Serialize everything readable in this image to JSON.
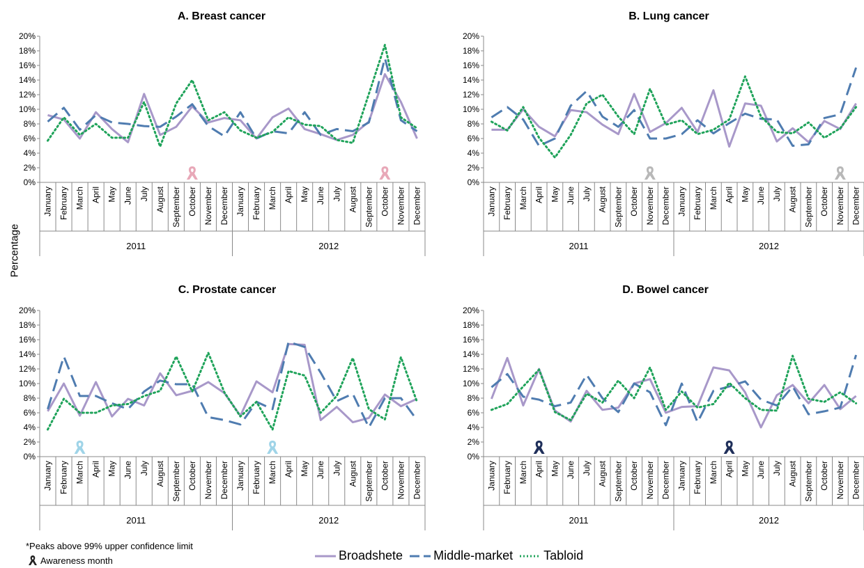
{
  "ylabel": "Percentage",
  "footnote_peaks": "*Peaks above 99% upper confidence limit",
  "footnote_awareness": "Awareness month",
  "legend": [
    {
      "name": "Broadshete",
      "color": "#a898c9",
      "dash": "solid"
    },
    {
      "name": "Middle-market",
      "color": "#4f7cb0",
      "dash": "longdash"
    },
    {
      "name": "Tabloid",
      "color": "#1fa35a",
      "dash": "dot"
    }
  ],
  "colors": {
    "broadsheet": "#a898c9",
    "middle_market": "#4f7cb0",
    "tabloid": "#1fa35a",
    "axis": "#888888"
  },
  "chart_data": [
    {
      "type": "line",
      "title": "A. Breast cancer",
      "ylabel": "Percentage",
      "ylim": [
        0,
        20
      ],
      "yticks": [
        "0%",
        "2%",
        "4%",
        "6%",
        "8%",
        "10%",
        "12%",
        "14%",
        "16%",
        "18%",
        "20%"
      ],
      "years": [
        "2011",
        "2012"
      ],
      "categories": [
        "January",
        "February",
        "March",
        "April",
        "May",
        "June",
        "July",
        "August",
        "September",
        "October",
        "November",
        "December",
        "January",
        "February",
        "March",
        "April",
        "May",
        "June",
        "July",
        "August",
        "September",
        "October",
        "November",
        "December"
      ],
      "awareness_months": [
        9,
        21
      ],
      "awareness_color": "#e8a8b8",
      "series": [
        {
          "name": "Broadsheet",
          "values": [
            9.2,
            8.6,
            6.0,
            9.6,
            7.3,
            5.5,
            12.1,
            6.5,
            7.6,
            10.4,
            8.2,
            8.8,
            8.5,
            6.0,
            8.9,
            10.1,
            7.3,
            6.6,
            5.8,
            6.5,
            8.3,
            14.8,
            11.0,
            6.0
          ]
        },
        {
          "name": "Middle-market",
          "values": [
            8.3,
            10.2,
            7.2,
            9.2,
            8.2,
            8.0,
            7.7,
            7.6,
            9.0,
            10.7,
            7.7,
            6.3,
            9.6,
            6.0,
            7.0,
            6.7,
            9.6,
            6.5,
            7.3,
            7.0,
            8.2,
            17.0,
            8.5,
            7.0
          ]
        },
        {
          "name": "Tabloid",
          "values": [
            5.7,
            8.9,
            6.5,
            8.0,
            6.1,
            6.1,
            11.0,
            4.9,
            10.8,
            14.0,
            8.5,
            9.6,
            7.1,
            6.1,
            6.9,
            8.9,
            7.9,
            7.7,
            5.8,
            5.4,
            12.1,
            18.8,
            8.9,
            7.4
          ]
        }
      ]
    },
    {
      "type": "line",
      "title": "B. Lung cancer",
      "ylabel": "Percentage",
      "ylim": [
        0,
        20
      ],
      "yticks": [
        "0%",
        "2%",
        "4%",
        "6%",
        "8%",
        "10%",
        "12%",
        "14%",
        "16%",
        "18%",
        "20%"
      ],
      "years": [
        "2011",
        "2012"
      ],
      "categories": [
        "January",
        "February",
        "March",
        "April",
        "May",
        "June",
        "July",
        "August",
        "September",
        "October",
        "November",
        "December",
        "January",
        "February",
        "March",
        "April",
        "May",
        "June",
        "July",
        "August",
        "September",
        "October",
        "November",
        "December"
      ],
      "awareness_months": [
        10,
        22
      ],
      "awareness_color": "#b8b8b8",
      "series": [
        {
          "name": "Broadsheet",
          "values": [
            7.2,
            7.2,
            10.0,
            7.6,
            6.3,
            9.9,
            9.6,
            7.9,
            6.6,
            12.1,
            6.9,
            8.1,
            10.2,
            6.9,
            12.6,
            4.9,
            10.8,
            10.5,
            5.6,
            7.4,
            5.5,
            8.4,
            7.3,
            10.8
          ]
        },
        {
          "name": "Middle-market",
          "values": [
            8.9,
            10.3,
            8.6,
            5.0,
            6.0,
            10.5,
            12.5,
            9.0,
            7.6,
            9.9,
            6.0,
            6.0,
            6.6,
            8.5,
            6.7,
            8.1,
            9.4,
            8.7,
            8.6,
            5.0,
            5.2,
            8.8,
            9.3,
            15.7
          ]
        },
        {
          "name": "Tabloid",
          "values": [
            8.3,
            7.1,
            10.3,
            6.1,
            3.4,
            6.5,
            10.8,
            12.0,
            9.0,
            6.6,
            12.8,
            7.9,
            8.5,
            6.6,
            7.2,
            8.6,
            14.5,
            9.0,
            6.9,
            6.7,
            8.2,
            6.1,
            7.4,
            10.3
          ]
        }
      ]
    },
    {
      "type": "line",
      "title": "C. Prostate cancer",
      "ylabel": "Percentage",
      "ylim": [
        0,
        20
      ],
      "yticks": [
        "0%",
        "2%",
        "4%",
        "6%",
        "8%",
        "10%",
        "12%",
        "14%",
        "16%",
        "18%",
        "20%"
      ],
      "years": [
        "2011",
        "2012"
      ],
      "categories": [
        "January",
        "February",
        "March",
        "April",
        "May",
        "June",
        "July",
        "August",
        "September",
        "October",
        "November",
        "December",
        "January",
        "February",
        "March",
        "April",
        "May",
        "June",
        "July",
        "August",
        "September",
        "October",
        "November",
        "December"
      ],
      "awareness_months": [
        2,
        14
      ],
      "awareness_color": "#9fd4e8",
      "series": [
        {
          "name": "Broadsheet",
          "values": [
            6.2,
            10.0,
            5.6,
            10.2,
            5.5,
            7.9,
            7.0,
            11.4,
            8.4,
            9.0,
            10.2,
            8.7,
            5.6,
            10.3,
            8.8,
            15.4,
            15.3,
            5.0,
            6.8,
            4.7,
            5.3,
            8.5,
            6.9,
            7.9
          ]
        },
        {
          "name": "Middle-market",
          "values": [
            6.5,
            13.7,
            8.3,
            8.3,
            7.3,
            6.5,
            8.9,
            10.4,
            9.9,
            9.9,
            5.4,
            5.0,
            4.4,
            7.5,
            6.5,
            15.7,
            15.0,
            11.5,
            7.6,
            8.6,
            4.0,
            8.0,
            8.0,
            5.0
          ]
        },
        {
          "name": "Tabloid",
          "values": [
            3.7,
            7.9,
            6.0,
            6.0,
            7.0,
            7.2,
            8.3,
            9.0,
            13.7,
            8.9,
            14.2,
            8.8,
            5.5,
            7.5,
            3.7,
            11.7,
            11.1,
            6.0,
            8.3,
            13.5,
            6.5,
            5.1,
            13.6,
            7.5
          ]
        }
      ]
    },
    {
      "type": "line",
      "title": "D. Bowel cancer",
      "ylabel": "Percentage",
      "ylim": [
        0,
        20
      ],
      "yticks": [
        "0%",
        "2%",
        "4%",
        "6%",
        "8%",
        "10%",
        "12%",
        "14%",
        "16%",
        "18%",
        "20%"
      ],
      "years": [
        "2011",
        "2012"
      ],
      "categories": [
        "January",
        "February",
        "March",
        "April",
        "May",
        "June",
        "July",
        "August",
        "September",
        "October",
        "November",
        "December",
        "January",
        "February",
        "March",
        "April",
        "May",
        "June",
        "July",
        "August",
        "September",
        "October",
        "November",
        "December"
      ],
      "awareness_months": [
        3,
        15
      ],
      "awareness_color": "#1f2f5a",
      "series": [
        {
          "name": "Broadsheet",
          "values": [
            7.9,
            13.5,
            7.0,
            12.0,
            6.3,
            4.8,
            9.0,
            6.4,
            6.7,
            10.0,
            10.6,
            6.0,
            6.8,
            6.9,
            12.2,
            11.8,
            8.8,
            4.0,
            8.4,
            9.8,
            7.3,
            9.8,
            6.5,
            8.3
          ]
        },
        {
          "name": "Middle-market",
          "values": [
            9.5,
            11.3,
            8.2,
            7.8,
            6.9,
            7.4,
            11.2,
            8.0,
            6.1,
            10.0,
            8.8,
            4.3,
            10.0,
            4.7,
            9.0,
            9.6,
            10.3,
            7.8,
            7.0,
            9.6,
            5.8,
            6.2,
            6.7,
            13.9
          ]
        },
        {
          "name": "Tabloid",
          "values": [
            6.4,
            7.2,
            9.6,
            11.9,
            6.1,
            5.0,
            8.6,
            7.4,
            10.4,
            8.0,
            12.2,
            6.4,
            8.9,
            6.7,
            7.2,
            10.1,
            8.0,
            6.4,
            6.3,
            13.8,
            7.9,
            7.5,
            8.8,
            7.3
          ]
        }
      ]
    }
  ]
}
